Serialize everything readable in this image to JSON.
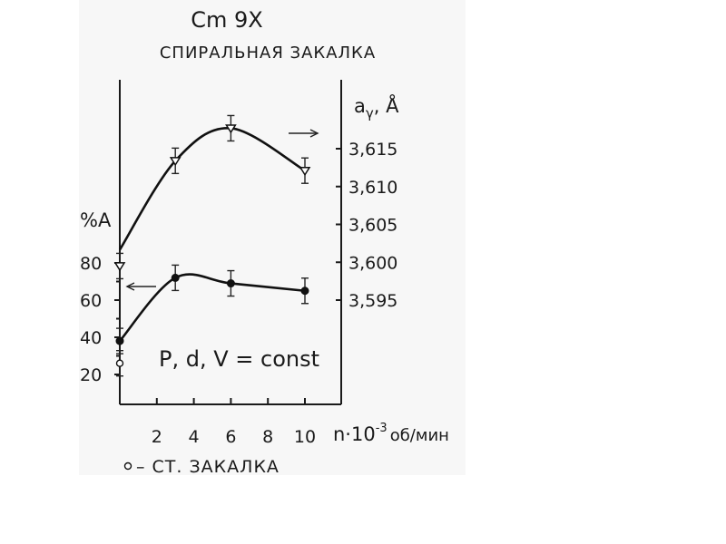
{
  "chart_data": {
    "type": "line",
    "title": "Cm 9X",
    "subtitle": "СПИРАЛЬНАЯ ЗАКАЛКА",
    "xlabel": "n·10⁻³ об/мин",
    "xlabel_parts": {
      "n": "n·10",
      "exp": "-3",
      "unit": "об/мин"
    },
    "xlim": [
      0,
      10
    ],
    "x_ticks": [
      "2",
      "4",
      "6",
      "8",
      "10"
    ],
    "y_left": {
      "label": "%A",
      "ylim": [
        20,
        80
      ],
      "ticks": [
        "80",
        "60",
        "40",
        "20"
      ]
    },
    "y_right": {
      "label_main": "a",
      "label_sub": "γ",
      "label_unit": ", Å",
      "ylim": [
        3.595,
        3.615
      ],
      "ticks": [
        "3,615",
        "3,610",
        "3,605",
        "3,600",
        "3,595"
      ]
    },
    "series": [
      {
        "axis": "right",
        "marker": "triangle-down-open",
        "points": [
          {
            "x": 0,
            "y": 3.5995
          },
          {
            "x": 3,
            "y": 3.6134
          },
          {
            "x": 6,
            "y": 3.6177
          },
          {
            "x": 10,
            "y": 3.6121
          }
        ]
      },
      {
        "axis": "left",
        "marker": "circle-filled",
        "points": [
          {
            "x": 0,
            "y": 38
          },
          {
            "x": 3,
            "y": 72
          },
          {
            "x": 6,
            "y": 69
          },
          {
            "x": 10,
            "y": 65
          }
        ]
      },
      {
        "axis": "left",
        "marker": "circle-open",
        "points": [
          {
            "x": 0,
            "y": 26
          }
        ]
      }
    ],
    "annotation": "P, d, V = const",
    "legend_text": "– СТ. ЗАКАЛКА",
    "grid": false
  }
}
